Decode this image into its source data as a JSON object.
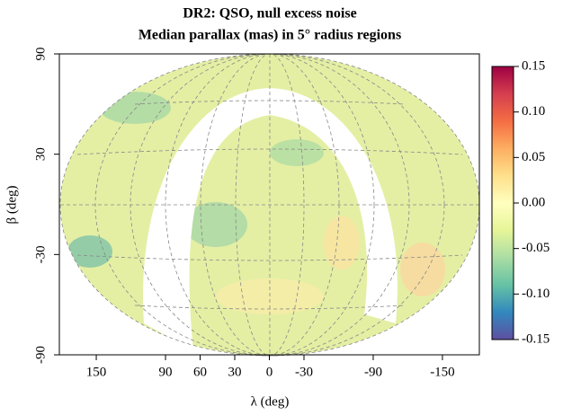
{
  "chart_data": {
    "type": "skymap",
    "title": "DR2: QSO, null excess noise",
    "subtitle": "Median parallax (mas) in 5° radius regions",
    "x_label": "λ (deg)",
    "y_label": "β (deg)",
    "xlim": [
      182,
      -182
    ],
    "xticks": [
      150,
      90,
      60,
      30,
      0,
      -30,
      -90,
      -150
    ],
    "ylim": [
      -90,
      90
    ],
    "yticks": [
      90,
      30,
      -30,
      -90
    ],
    "colorbar": {
      "lim": [
        -0.15,
        0.15
      ],
      "ticks": [
        0.15,
        {
          "value": 0.1,
          "label": "0.10"
        },
        0.05,
        {
          "value": 0,
          "label": "0.00"
        },
        -0.05,
        {
          "value": -0.1,
          "label": "-0.10"
        },
        -0.15
      ],
      "colors": [
        "#5e4fa2",
        "#3288bd",
        "#66c2a5",
        "#abdda4",
        "#e6f598",
        "#ffffbf",
        "#fee08b",
        "#fdae61",
        "#f46d43",
        "#d53e4f",
        "#9e0142"
      ]
    }
  }
}
